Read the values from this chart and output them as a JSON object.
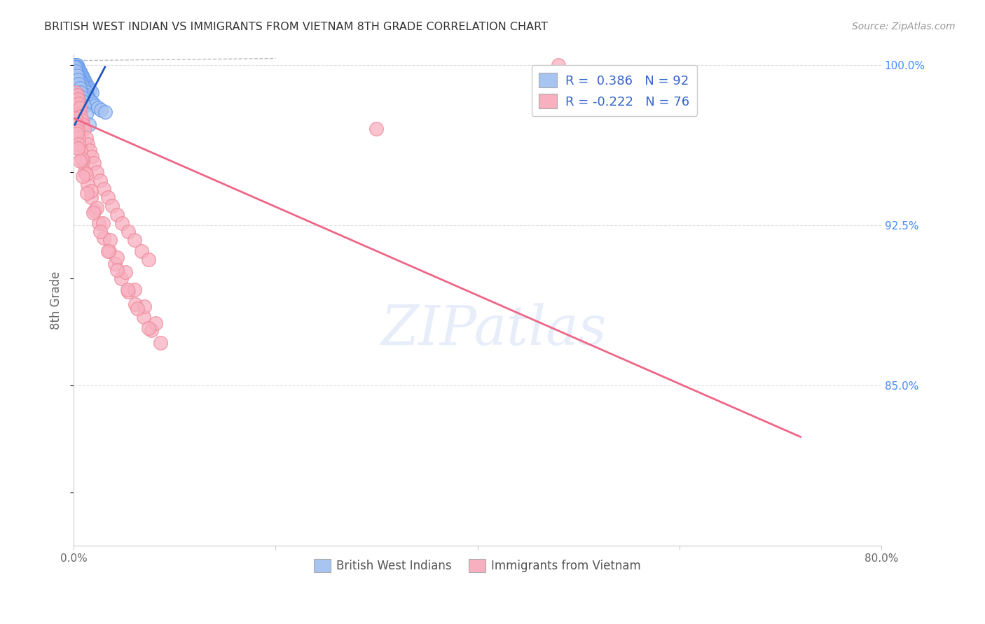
{
  "title": "BRITISH WEST INDIAN VS IMMIGRANTS FROM VIETNAM 8TH GRADE CORRELATION CHART",
  "source": "Source: ZipAtlas.com",
  "ylabel": "8th Grade",
  "watermark": "ZIPatlas",
  "xlim": [
    0.0,
    0.8
  ],
  "ylim": [
    0.775,
    1.005
  ],
  "legend_blue_r": "0.386",
  "legend_blue_n": "92",
  "legend_pink_r": "-0.222",
  "legend_pink_n": "76",
  "blue_color": "#a8c4f0",
  "blue_edge_color": "#6699ee",
  "pink_color": "#f8b0c0",
  "pink_edge_color": "#ee8899",
  "blue_line_color": "#2255bb",
  "pink_line_color": "#ee6688",
  "background_color": "#ffffff",
  "grid_color": "#dddddd",
  "title_color": "#333333",
  "right_axis_color": "#4488ff",
  "ytick_positions": [
    0.775,
    0.8,
    0.825,
    0.85,
    0.875,
    0.9,
    0.925,
    0.95,
    0.975,
    1.0
  ],
  "ytick_labels": [
    "",
    "",
    "",
    "85.0%",
    "",
    "",
    "92.5%",
    "",
    "",
    "100.0%"
  ],
  "ytick_positions_lines": [
    0.925,
    0.85,
    0.775,
    1.0
  ],
  "blue_scatter_x": [
    0.001,
    0.001,
    0.001,
    0.001,
    0.002,
    0.002,
    0.002,
    0.002,
    0.002,
    0.002,
    0.002,
    0.002,
    0.003,
    0.003,
    0.003,
    0.003,
    0.003,
    0.003,
    0.003,
    0.004,
    0.004,
    0.004,
    0.004,
    0.004,
    0.005,
    0.005,
    0.005,
    0.005,
    0.006,
    0.006,
    0.006,
    0.007,
    0.007,
    0.007,
    0.008,
    0.008,
    0.008,
    0.009,
    0.009,
    0.01,
    0.01,
    0.01,
    0.011,
    0.012,
    0.012,
    0.013,
    0.014,
    0.015,
    0.016,
    0.018,
    0.001,
    0.001,
    0.002,
    0.002,
    0.002,
    0.003,
    0.003,
    0.003,
    0.004,
    0.004,
    0.004,
    0.005,
    0.005,
    0.006,
    0.006,
    0.007,
    0.008,
    0.009,
    0.01,
    0.011,
    0.012,
    0.013,
    0.014,
    0.015,
    0.017,
    0.019,
    0.021,
    0.024,
    0.027,
    0.031,
    0.001,
    0.002,
    0.003,
    0.004,
    0.005,
    0.006,
    0.007,
    0.008,
    0.009,
    0.01,
    0.012,
    0.015
  ],
  "blue_scatter_y": [
    1.0,
    1.0,
    1.0,
    0.999,
    1.0,
    1.0,
    0.999,
    0.999,
    0.998,
    0.998,
    0.997,
    0.996,
    1.0,
    0.999,
    0.999,
    0.998,
    0.997,
    0.996,
    0.995,
    0.999,
    0.998,
    0.997,
    0.996,
    0.995,
    0.998,
    0.997,
    0.996,
    0.995,
    0.997,
    0.996,
    0.995,
    0.996,
    0.995,
    0.994,
    0.995,
    0.994,
    0.993,
    0.994,
    0.993,
    0.993,
    0.992,
    0.991,
    0.992,
    0.991,
    0.99,
    0.99,
    0.989,
    0.989,
    0.988,
    0.987,
    0.998,
    0.997,
    0.997,
    0.996,
    0.995,
    0.996,
    0.995,
    0.994,
    0.995,
    0.994,
    0.993,
    0.994,
    0.993,
    0.993,
    0.992,
    0.992,
    0.991,
    0.99,
    0.989,
    0.988,
    0.987,
    0.986,
    0.985,
    0.984,
    0.983,
    0.982,
    0.981,
    0.98,
    0.979,
    0.978,
    0.999,
    0.997,
    0.995,
    0.993,
    0.991,
    0.989,
    0.987,
    0.985,
    0.983,
    0.981,
    0.977,
    0.972
  ],
  "pink_scatter_x": [
    0.001,
    0.002,
    0.002,
    0.003,
    0.003,
    0.004,
    0.004,
    0.005,
    0.005,
    0.006,
    0.007,
    0.008,
    0.009,
    0.01,
    0.012,
    0.014,
    0.016,
    0.018,
    0.02,
    0.023,
    0.026,
    0.03,
    0.034,
    0.038,
    0.043,
    0.048,
    0.054,
    0.06,
    0.067,
    0.074,
    0.002,
    0.003,
    0.004,
    0.005,
    0.007,
    0.009,
    0.011,
    0.014,
    0.017,
    0.021,
    0.025,
    0.03,
    0.035,
    0.041,
    0.047,
    0.054,
    0.061,
    0.069,
    0.077,
    0.086,
    0.003,
    0.005,
    0.008,
    0.012,
    0.017,
    0.023,
    0.029,
    0.036,
    0.043,
    0.051,
    0.06,
    0.07,
    0.081,
    0.004,
    0.006,
    0.009,
    0.013,
    0.019,
    0.026,
    0.034,
    0.043,
    0.053,
    0.063,
    0.074,
    0.3,
    0.48
  ],
  "pink_scatter_y": [
    0.985,
    0.987,
    0.983,
    0.986,
    0.981,
    0.984,
    0.979,
    0.982,
    0.977,
    0.98,
    0.976,
    0.974,
    0.972,
    0.97,
    0.966,
    0.963,
    0.96,
    0.957,
    0.954,
    0.95,
    0.946,
    0.942,
    0.938,
    0.934,
    0.93,
    0.926,
    0.922,
    0.918,
    0.913,
    0.909,
    0.975,
    0.972,
    0.969,
    0.966,
    0.96,
    0.955,
    0.95,
    0.944,
    0.938,
    0.932,
    0.926,
    0.919,
    0.913,
    0.907,
    0.9,
    0.894,
    0.888,
    0.882,
    0.876,
    0.87,
    0.968,
    0.963,
    0.956,
    0.949,
    0.941,
    0.933,
    0.926,
    0.918,
    0.91,
    0.903,
    0.895,
    0.887,
    0.879,
    0.961,
    0.955,
    0.948,
    0.94,
    0.931,
    0.922,
    0.913,
    0.904,
    0.895,
    0.886,
    0.877,
    0.97,
    1.0
  ],
  "pink_line_x0": 0.0,
  "pink_line_x1": 0.72,
  "pink_line_y0": 0.975,
  "pink_line_y1": 0.826,
  "blue_line_x0": 0.001,
  "blue_line_x1": 0.031,
  "blue_line_y0": 0.972,
  "blue_line_y1": 0.999
}
